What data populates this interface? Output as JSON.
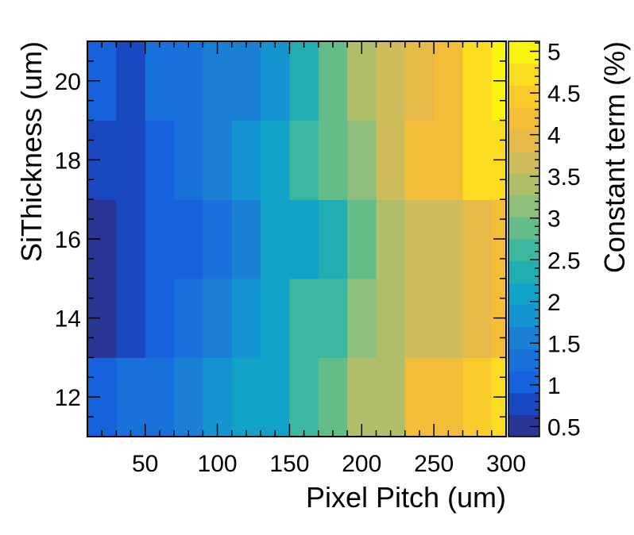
{
  "chart_data": {
    "type": "heatmap",
    "title": "",
    "xlabel": "Pixel Pitch (um)",
    "ylabel": "SiThickness (um)",
    "zlabel": "Constant term (%)",
    "x_edges": [
      10,
      30,
      50,
      70,
      90,
      110,
      130,
      150,
      170,
      190,
      210,
      230,
      250,
      270,
      290,
      300
    ],
    "y_edges": [
      11,
      13,
      15,
      17,
      19,
      21
    ],
    "xlim": [
      10,
      300
    ],
    "ylim": [
      11,
      21
    ],
    "zlim": [
      0.38,
      5.12
    ],
    "x_ticks": [
      50,
      100,
      150,
      200,
      250,
      300
    ],
    "x_tick_labels": [
      "50",
      "100",
      "150",
      "200",
      "250",
      "300"
    ],
    "y_ticks": [
      12,
      14,
      16,
      18,
      20
    ],
    "y_tick_labels": [
      "12",
      "14",
      "16",
      "18",
      "20"
    ],
    "z_ticks": [
      0.5,
      1,
      1.5,
      2,
      2.5,
      3,
      3.5,
      4,
      4.5,
      5
    ],
    "z_tick_labels": [
      "0.5",
      "1",
      "1.5",
      "2",
      "2.5",
      "3",
      "3.5",
      "4",
      "4.5",
      "5"
    ],
    "z_values": [
      [
        1.1,
        1.3,
        1.4,
        1.5,
        1.7,
        2.0,
        2.1,
        2.6,
        2.8,
        3.3,
        3.5,
        4.1,
        4.3,
        4.4,
        4.6
      ],
      [
        0.6,
        0.9,
        1.1,
        1.3,
        1.5,
        1.7,
        2.0,
        2.5,
        2.7,
        3.1,
        3.3,
        3.6,
        3.7,
        4.0,
        4.1
      ],
      [
        0.6,
        0.7,
        1.0,
        1.1,
        1.4,
        1.6,
        2.1,
        2.2,
        2.4,
        2.8,
        3.4,
        3.6,
        3.8,
        3.9,
        4.1
      ],
      [
        0.8,
        0.9,
        1.0,
        1.4,
        1.6,
        1.8,
        2.2,
        2.5,
        2.9,
        3.1,
        3.6,
        4.1,
        4.3,
        4.7,
        4.8
      ],
      [
        1.1,
        0.7,
        1.2,
        1.3,
        1.5,
        1.6,
        1.9,
        2.4,
        2.8,
        3.3,
        3.8,
        3.9,
        4.3,
        4.6,
        5.0
      ]
    ],
    "palette": [
      "#2b3594",
      "#1948c1",
      "#1661dc",
      "#1870db",
      "#1a80d5",
      "#1494d0",
      "#11a2c7",
      "#21aeb2",
      "#3cb79f",
      "#64bc88",
      "#8dbe7b",
      "#b0be6a",
      "#cfbd5d",
      "#e6ba49",
      "#f4bd38",
      "#f9cc2b",
      "#fadd21",
      "#f9f40e"
    ]
  }
}
